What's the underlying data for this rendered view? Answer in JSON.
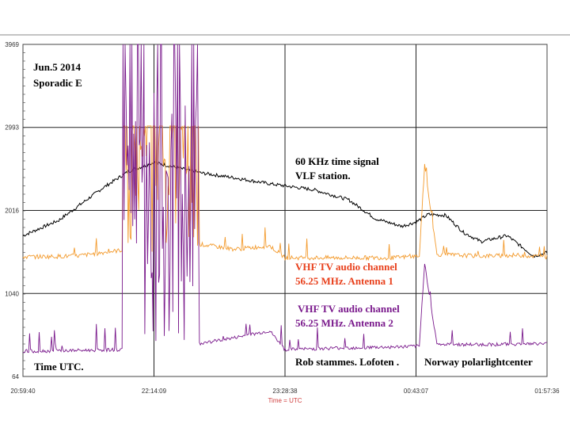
{
  "chart_data": {
    "type": "line",
    "annotations": {
      "date": "Jun.5 2014",
      "event": "Sporadic E",
      "time_label": "Time UTC.",
      "credit_left": "Rob stammes. Lofoten .",
      "credit_right": "Norway polarlightcenter"
    },
    "xlabel": "Time = UTC",
    "x_ticks": [
      "20:59:40",
      "22:14:09",
      "23:28:38",
      "00:43:07",
      "01:57:36"
    ],
    "y_ticks": [
      3969,
      2993,
      2016,
      1040,
      64
    ],
    "ylim": [
      64,
      3969
    ],
    "grid": true,
    "colors": {
      "black_series": "#000000",
      "orange_series": "#f39a2c",
      "purple_series": "#7a1a8c",
      "grid": "#222222",
      "tick_text": "#333333",
      "xlabel_text": "#d04040",
      "orange_label": "#e8401c",
      "purple_label": "#7a1a8c"
    },
    "series": [
      {
        "name": "60 KHz time signal VLF station.",
        "label_lines": [
          "60 KHz time signal",
          "VLF station."
        ],
        "color": "black",
        "x": [
          "20:59:40",
          "21:20",
          "21:45",
          "22:00",
          "22:14:09",
          "22:40",
          "23:00",
          "23:20",
          "23:45",
          "00:05",
          "00:20",
          "00:35",
          "00:43:07",
          "00:50",
          "01:00",
          "01:10",
          "01:20",
          "01:35",
          "01:50",
          "01:57:36"
        ],
        "values": [
          1720,
          1900,
          2280,
          2480,
          2580,
          2460,
          2400,
          2330,
          2260,
          2140,
          1920,
          1830,
          1880,
          1970,
          1960,
          1760,
          1650,
          1720,
          1480,
          1520
        ]
      },
      {
        "name": "VHF TV audio channel 56.25 MHz. Antenna 1",
        "label_lines": [
          "VHF TV audio channel",
          "56.25 MHz. Antenna 1"
        ],
        "color": "orange",
        "x": [
          "20:59:40",
          "21:30",
          "21:56",
          "22:00",
          "22:14:09",
          "22:20",
          "22:40",
          "23:00",
          "23:20",
          "23:28:38",
          "00:00",
          "00:30",
          "00:45",
          "00:48",
          "00:55",
          "01:20",
          "01:40",
          "01:57:36"
        ],
        "values": [
          1470,
          1480,
          1550,
          3010,
          3020,
          3010,
          1620,
          1560,
          1600,
          1460,
          1460,
          1460,
          1480,
          2540,
          1500,
          1480,
          1490,
          1470
        ],
        "note": "saturated peaks near 3010 between 22:00 and 22:40"
      },
      {
        "name": "VHF TV audio channel 56.25 MHz. Antenna 2",
        "label_lines": [
          " VHF TV audio channel",
          "56.25 MHz. Antenna 2"
        ],
        "color": "purple",
        "x": [
          "20:59:40",
          "21:30",
          "21:56",
          "22:00",
          "22:10",
          "22:14:09",
          "22:20",
          "22:40",
          "23:00",
          "23:20",
          "23:28:38",
          "00:00",
          "00:30",
          "00:45",
          "00:48",
          "00:55",
          "01:20",
          "01:57:36"
        ],
        "values": [
          360,
          370,
          380,
          1300,
          3969,
          3000,
          900,
          450,
          520,
          600,
          380,
          400,
          410,
          420,
          1400,
          440,
          440,
          450
        ]
      }
    ]
  }
}
